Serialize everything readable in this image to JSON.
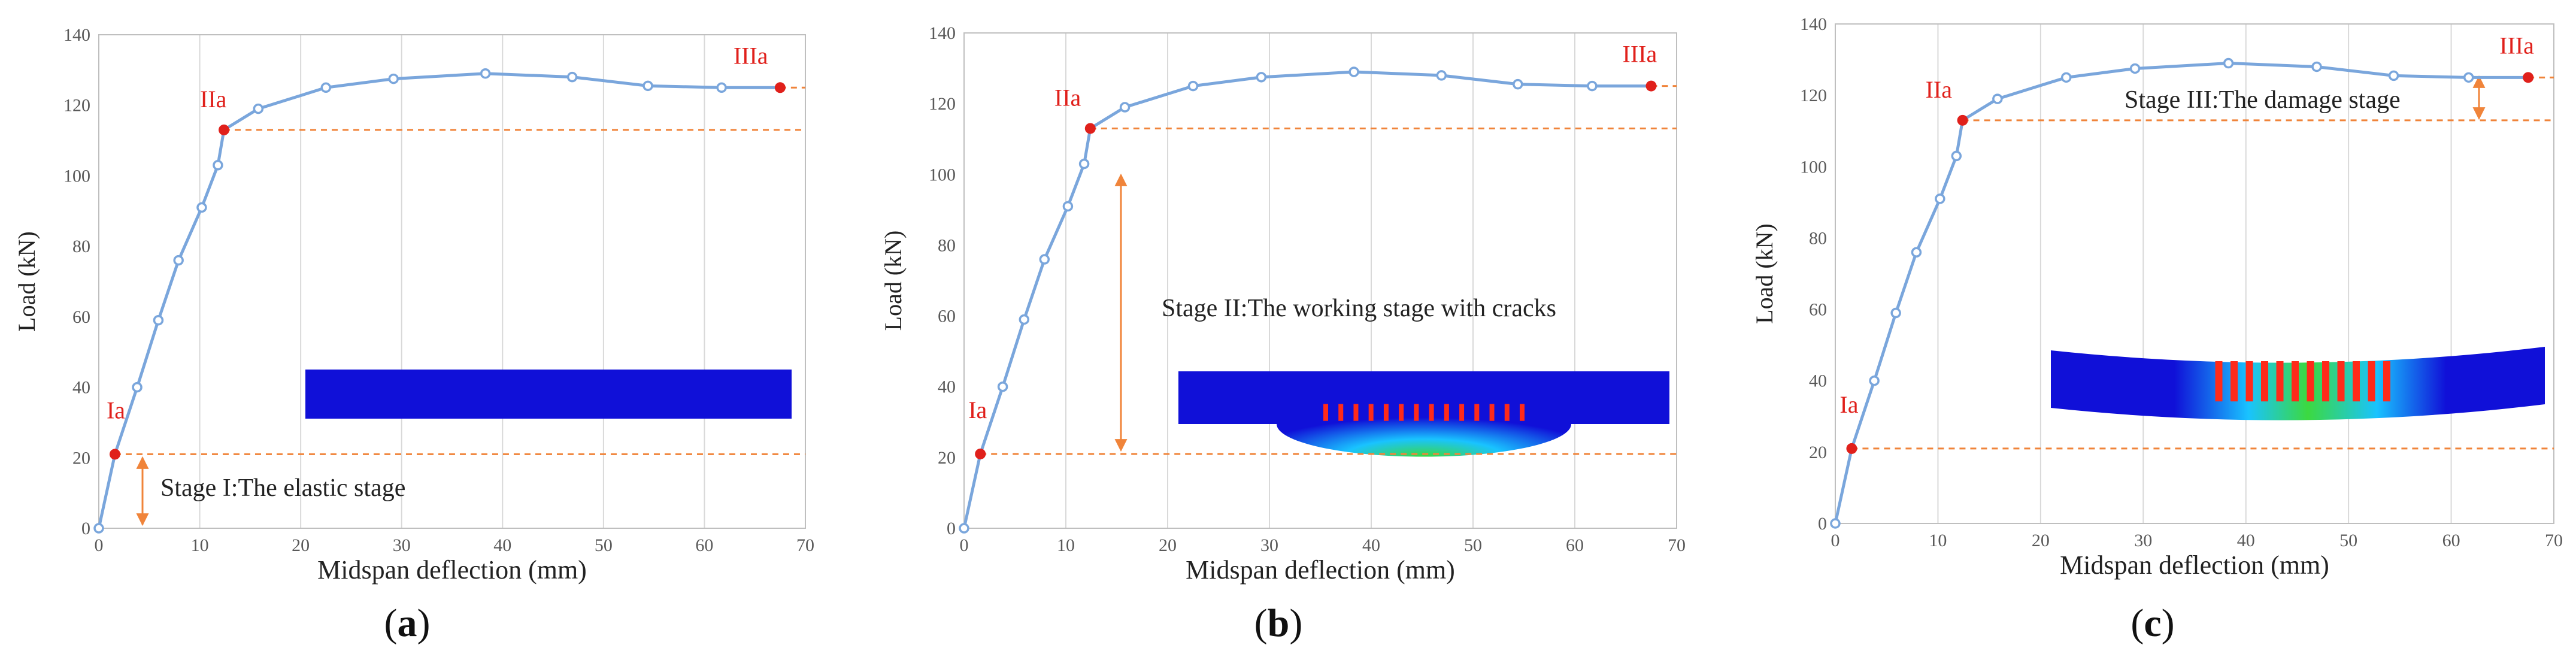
{
  "figure": {
    "panels": [
      {
        "id": "a",
        "caption_open": "(",
        "caption_letter": "a",
        "caption_close": ")",
        "stage_text": "Stage I:The elastic stage"
      },
      {
        "id": "b",
        "caption_open": "(",
        "caption_letter": "b",
        "caption_close": ")",
        "stage_text": "Stage II:The working stage with cracks"
      },
      {
        "id": "c",
        "caption_open": "(",
        "caption_letter": "c",
        "caption_close": ")",
        "stage_text": "Stage III:The damage stage"
      }
    ],
    "colors": {
      "curve": "#7aa6dc",
      "marker_fill": "#ffffff",
      "key_point": "#e0201b",
      "reference_line": "#f0843a",
      "stage_arrow": "#f0843a",
      "gridline": "#d9d9d9",
      "beam_base": "#1010d8",
      "beam_damage_mid": "#19c3ff",
      "beam_damage_high": "#3cd940",
      "beam_damage_peak": "#ff2a1a"
    }
  },
  "chart_data": [
    {
      "type": "line",
      "xlabel": "Midspan deflection (mm)",
      "ylabel": "Load (kN)",
      "xlim": [
        0,
        70
      ],
      "ylim": [
        0,
        140
      ],
      "x_ticks": [
        0,
        10,
        20,
        30,
        40,
        50,
        60,
        70
      ],
      "y_ticks": [
        0,
        20,
        40,
        60,
        80,
        100,
        120,
        140
      ],
      "grid": "vertical",
      "series": [
        {
          "x": [
            0,
            1.6,
            3.8,
            5.9,
            7.9,
            10.2,
            11.8,
            12.4,
            15.8,
            22.5,
            29.2,
            38.3,
            46.9,
            54.4,
            61.7,
            67.5
          ],
          "y": [
            0,
            21,
            40,
            59,
            76,
            91,
            103,
            113,
            119,
            125,
            127.5,
            129,
            128,
            125.5,
            125,
            125
          ]
        }
      ],
      "key_points": [
        {
          "label": "Ia",
          "x": 1.6,
          "y": 21
        },
        {
          "label": "IIa",
          "x": 12.4,
          "y": 113
        },
        {
          "label": "IIIa",
          "x": 67.5,
          "y": 125
        }
      ],
      "reference_lines": [
        21,
        113,
        125
      ]
    },
    {
      "type": "line",
      "xlabel": "Midspan deflection (mm)",
      "ylabel": "Load (kN)",
      "xlim": [
        0,
        70
      ],
      "ylim": [
        0,
        140
      ],
      "x_ticks": [
        0,
        10,
        20,
        30,
        40,
        50,
        60,
        70
      ],
      "y_ticks": [
        0,
        20,
        40,
        60,
        80,
        100,
        120,
        140
      ],
      "grid": "vertical",
      "series": [
        {
          "x": [
            0,
            1.6,
            3.8,
            5.9,
            7.9,
            10.2,
            11.8,
            12.4,
            15.8,
            22.5,
            29.2,
            38.3,
            46.9,
            54.4,
            61.7,
            67.5
          ],
          "y": [
            0,
            21,
            40,
            59,
            76,
            91,
            103,
            113,
            119,
            125,
            127.5,
            129,
            128,
            125.5,
            125,
            125
          ]
        }
      ],
      "key_points": [
        {
          "label": "Ia",
          "x": 1.6,
          "y": 21
        },
        {
          "label": "IIa",
          "x": 12.4,
          "y": 113
        },
        {
          "label": "IIIa",
          "x": 67.5,
          "y": 125
        }
      ],
      "reference_lines": [
        21,
        113,
        125
      ]
    },
    {
      "type": "line",
      "xlabel": "Midspan deflection (mm)",
      "ylabel": "Load (kN)",
      "xlim": [
        0,
        70
      ],
      "ylim": [
        0,
        140
      ],
      "x_ticks": [
        0,
        10,
        20,
        30,
        40,
        50,
        60,
        70
      ],
      "y_ticks": [
        0,
        20,
        40,
        60,
        80,
        100,
        120,
        140
      ],
      "grid": "vertical",
      "series": [
        {
          "x": [
            0,
            1.6,
            3.8,
            5.9,
            7.9,
            10.2,
            11.8,
            12.4,
            15.8,
            22.5,
            29.2,
            38.3,
            46.9,
            54.4,
            61.7,
            67.5
          ],
          "y": [
            0,
            21,
            40,
            59,
            76,
            91,
            103,
            113,
            119,
            125,
            127.5,
            129,
            128,
            125.5,
            125,
            125
          ]
        }
      ],
      "key_points": [
        {
          "label": "Ia",
          "x": 1.6,
          "y": 21
        },
        {
          "label": "IIa",
          "x": 12.4,
          "y": 113
        },
        {
          "label": "IIIa",
          "x": 67.5,
          "y": 125
        }
      ],
      "reference_lines": [
        21,
        113,
        125
      ]
    }
  ]
}
